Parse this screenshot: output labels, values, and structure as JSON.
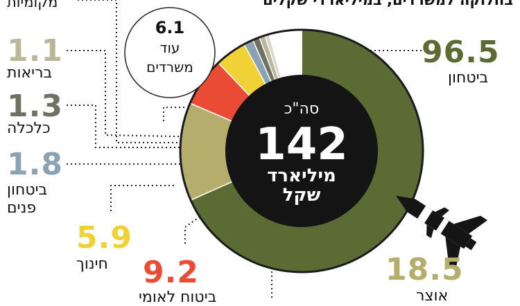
{
  "title": "בחלוקה למשרדים, במיליארדי שקלים",
  "top_left_label": "מקומיות",
  "center": {
    "prefix": "סה\"כ",
    "total": "142",
    "unit_line1": "מיליארד",
    "unit_line2": "שקל"
  },
  "bubble": {
    "value": "6.1",
    "label_line1": "עוד",
    "label_line2": "משרדים"
  },
  "labels": {
    "defense": {
      "value": "96.5",
      "name": "ביטחון"
    },
    "treasury": {
      "value": "18.5",
      "name": "אוצר"
    },
    "national_insurance": {
      "value": "9.2",
      "name": "ביטוח לאומי"
    },
    "education": {
      "value": "5.9",
      "name": "חינוך"
    },
    "internal_security": {
      "value": "1.8",
      "name_line1": "ביטחון",
      "name_line2": "פנים"
    },
    "economy": {
      "value": "1.3",
      "name": "כלכלה"
    },
    "health": {
      "value": "1.1",
      "name": "בריאות"
    }
  },
  "colors": {
    "defense": "#5c6b34",
    "treasury": "#b4ad6c",
    "national_insurance": "#e94b35",
    "education": "#f0d236",
    "internal_security": "#8aa2b4",
    "economy": "#6e7361",
    "health": "#b9b79a",
    "local_authorities": "#d6d6ca",
    "other": "#ffffff",
    "center": "#141414"
  },
  "chart_data": {
    "type": "pie",
    "title": "בחלוקה למשרדים, במיליארדי שקלים",
    "total": 142,
    "categories": [
      "ביטחון",
      "אוצר",
      "ביטוח לאומי",
      "חינוך",
      "ביטחון פנים",
      "כלכלה",
      "בריאות",
      "מקומיות",
      "עוד משרדים"
    ],
    "values": [
      96.5,
      18.5,
      9.2,
      5.9,
      1.8,
      1.3,
      1.1,
      0.8,
      6.1
    ]
  }
}
